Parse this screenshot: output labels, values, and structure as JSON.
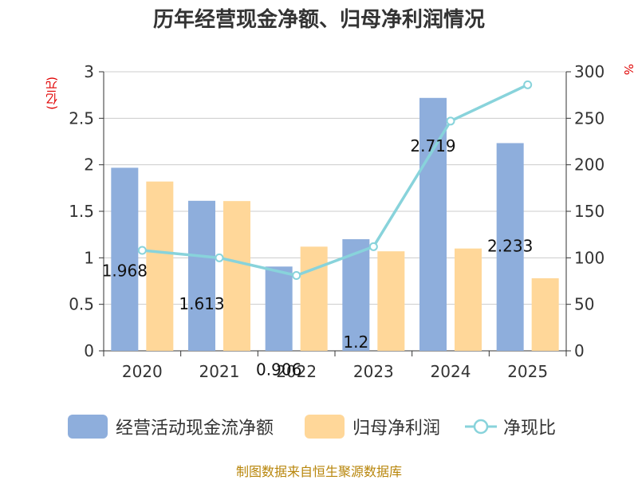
{
  "chart_data": {
    "type": "bar",
    "title": "历年经营现金净额、归母净利润情况",
    "categories": [
      "2020",
      "2021",
      "2022",
      "2023",
      "2024",
      "2025"
    ],
    "series": [
      {
        "name": "经营活动现金流净额",
        "axis": "left",
        "kind": "bar",
        "color": "#8eaedc",
        "values": [
          1.968,
          1.613,
          0.906,
          1.2,
          2.719,
          2.233
        ],
        "labels": [
          "1.968",
          "1.613",
          "0.906",
          "1.2",
          "2.719",
          "2.233"
        ]
      },
      {
        "name": "归母净利润",
        "axis": "left",
        "kind": "bar",
        "color": "#ffd799",
        "values": [
          1.82,
          1.61,
          1.12,
          1.07,
          1.1,
          0.78
        ]
      },
      {
        "name": "净现比",
        "axis": "right",
        "kind": "line",
        "color": "#88d3db",
        "values": [
          108,
          100,
          81,
          112,
          247,
          286
        ]
      }
    ],
    "y_left": {
      "label": "(亿元)",
      "min": 0,
      "max": 3,
      "ticks": [
        "0",
        "0.5",
        "1",
        "1.5",
        "2",
        "2.5",
        "3"
      ]
    },
    "y_right": {
      "label": "%",
      "min": 0,
      "max": 300,
      "ticks": [
        "0",
        "50",
        "100",
        "150",
        "200",
        "250",
        "300"
      ]
    },
    "grid": true,
    "legend_position": "bottom"
  },
  "source": "制图数据来自恒生聚源数据库"
}
